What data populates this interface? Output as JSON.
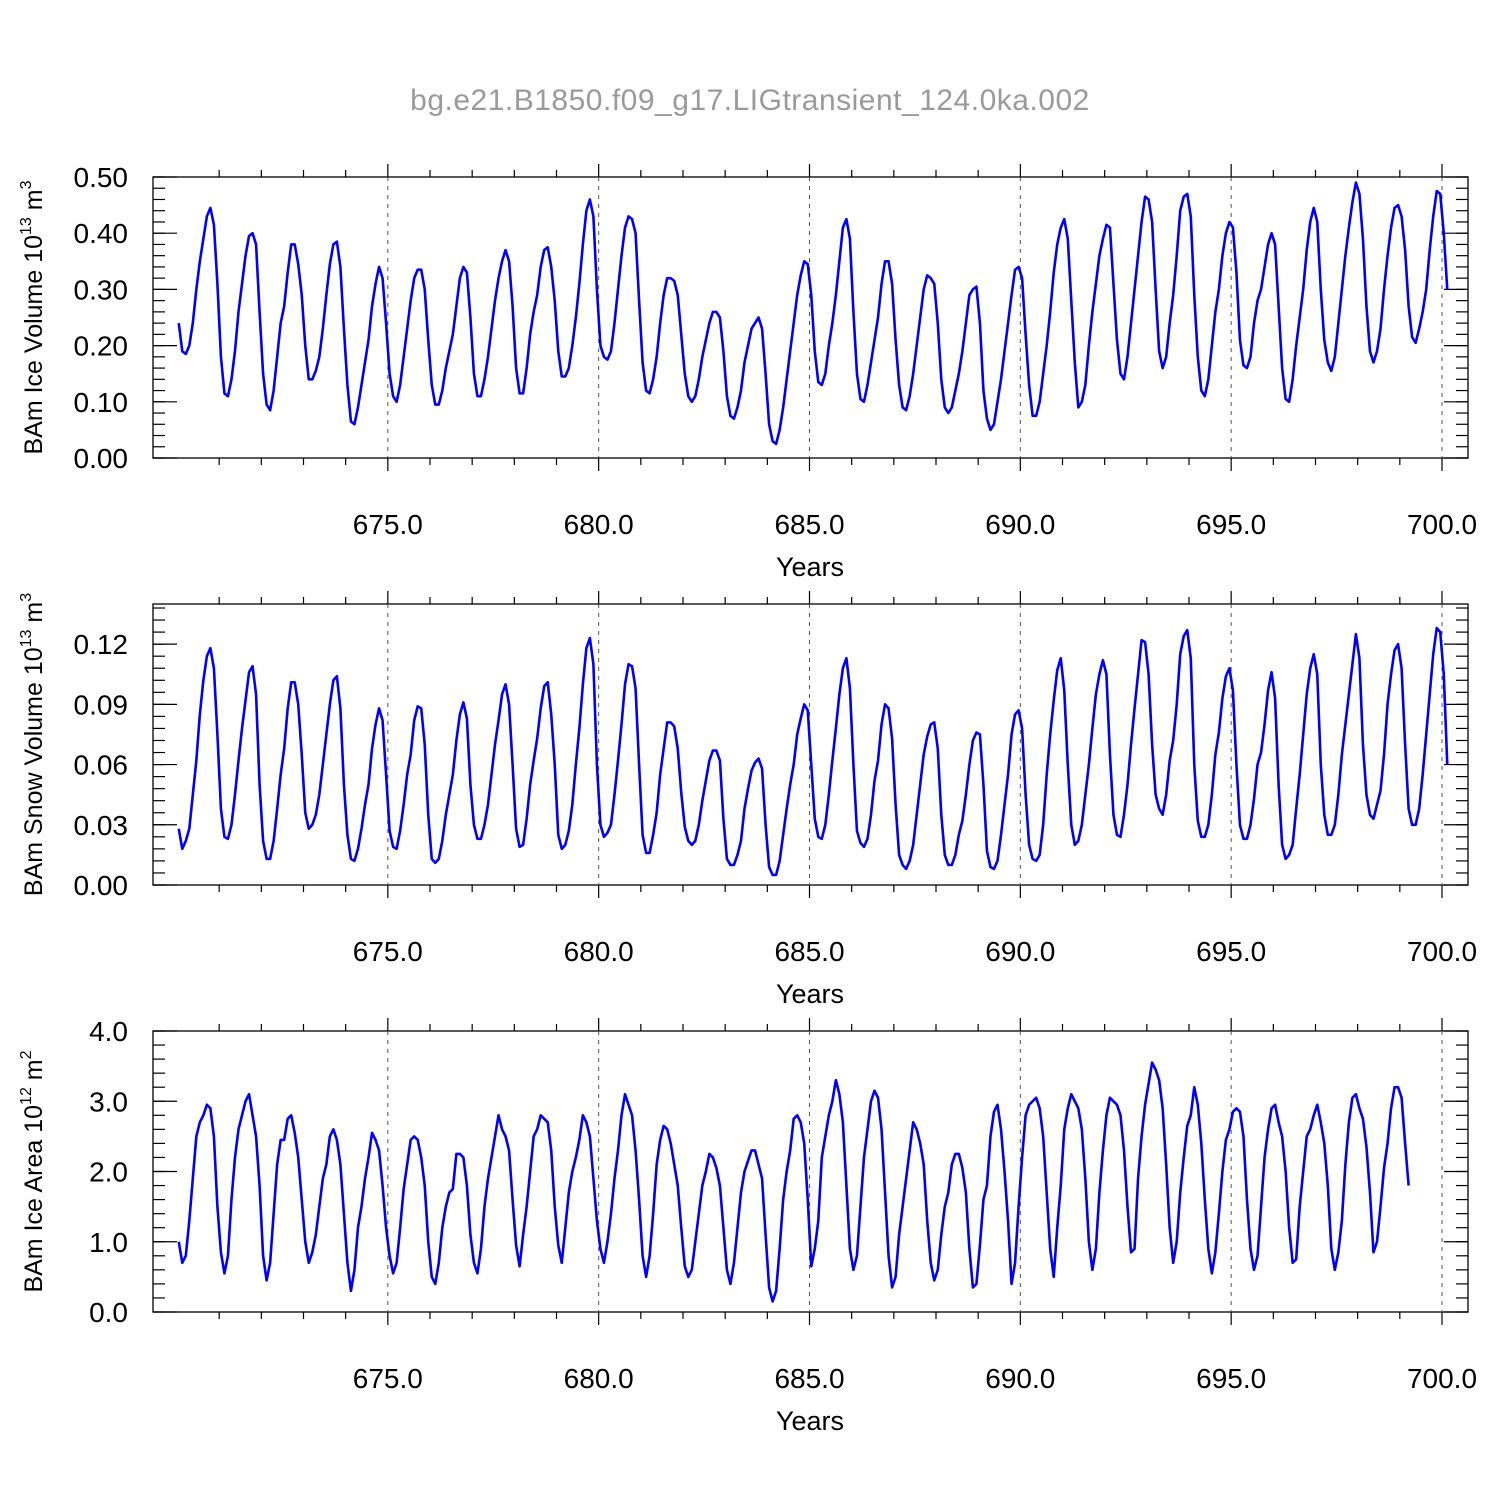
{
  "title": "bg.e21.B1850.f09_g17.LIGtransient_124.0ka.002",
  "colors": {
    "series": "#0000ff",
    "title": "#9a9a9a",
    "grid": "#555555"
  },
  "chart_data": [
    {
      "type": "line",
      "xlabel": "Years",
      "ylabel": {
        "main": "BAm Ice Volume 10",
        "exp": "13",
        "unit": " m",
        "unit_exp": "3"
      },
      "xlim": [
        670.0,
        700.0
      ],
      "ylim": [
        0.0,
        0.5
      ],
      "xticks": [
        "675.0",
        "680.0",
        "685.0",
        "690.0",
        "695.0",
        "700.0"
      ],
      "yticks": [
        "0.00",
        "0.10",
        "0.20",
        "0.30",
        "0.40",
        "0.50"
      ],
      "grid": "vertical dashed at major x ticks",
      "x_start": 670.0417,
      "x_step": 0.0833333,
      "values": [
        0.24,
        0.19,
        0.185,
        0.2,
        0.24,
        0.3,
        0.35,
        0.39,
        0.43,
        0.445,
        0.415,
        0.31,
        0.18,
        0.115,
        0.11,
        0.14,
        0.19,
        0.26,
        0.31,
        0.36,
        0.395,
        0.4,
        0.38,
        0.26,
        0.15,
        0.095,
        0.085,
        0.12,
        0.18,
        0.24,
        0.27,
        0.33,
        0.38,
        0.38,
        0.345,
        0.29,
        0.2,
        0.14,
        0.14,
        0.155,
        0.18,
        0.23,
        0.29,
        0.345,
        0.38,
        0.385,
        0.34,
        0.23,
        0.13,
        0.065,
        0.06,
        0.09,
        0.13,
        0.17,
        0.21,
        0.27,
        0.31,
        0.34,
        0.32,
        0.24,
        0.15,
        0.11,
        0.1,
        0.13,
        0.18,
        0.23,
        0.28,
        0.32,
        0.335,
        0.335,
        0.3,
        0.21,
        0.13,
        0.095,
        0.095,
        0.12,
        0.16,
        0.19,
        0.22,
        0.27,
        0.32,
        0.34,
        0.33,
        0.25,
        0.15,
        0.11,
        0.11,
        0.14,
        0.18,
        0.23,
        0.28,
        0.32,
        0.35,
        0.37,
        0.35,
        0.27,
        0.16,
        0.115,
        0.115,
        0.16,
        0.22,
        0.26,
        0.29,
        0.34,
        0.37,
        0.375,
        0.34,
        0.28,
        0.19,
        0.145,
        0.145,
        0.16,
        0.2,
        0.25,
        0.31,
        0.38,
        0.44,
        0.46,
        0.43,
        0.3,
        0.2,
        0.18,
        0.175,
        0.19,
        0.24,
        0.3,
        0.36,
        0.41,
        0.43,
        0.425,
        0.4,
        0.28,
        0.17,
        0.12,
        0.115,
        0.14,
        0.18,
        0.24,
        0.29,
        0.32,
        0.32,
        0.315,
        0.29,
        0.22,
        0.15,
        0.11,
        0.1,
        0.11,
        0.14,
        0.18,
        0.21,
        0.24,
        0.26,
        0.26,
        0.25,
        0.19,
        0.11,
        0.075,
        0.07,
        0.09,
        0.12,
        0.17,
        0.2,
        0.23,
        0.24,
        0.25,
        0.23,
        0.15,
        0.06,
        0.03,
        0.025,
        0.05,
        0.09,
        0.14,
        0.19,
        0.24,
        0.29,
        0.325,
        0.35,
        0.345,
        0.29,
        0.19,
        0.135,
        0.13,
        0.15,
        0.2,
        0.24,
        0.29,
        0.35,
        0.41,
        0.425,
        0.39,
        0.26,
        0.15,
        0.105,
        0.1,
        0.13,
        0.17,
        0.21,
        0.25,
        0.31,
        0.35,
        0.35,
        0.31,
        0.21,
        0.13,
        0.09,
        0.085,
        0.11,
        0.15,
        0.2,
        0.25,
        0.3,
        0.325,
        0.32,
        0.31,
        0.24,
        0.14,
        0.09,
        0.08,
        0.09,
        0.12,
        0.15,
        0.19,
        0.24,
        0.29,
        0.3,
        0.305,
        0.24,
        0.12,
        0.07,
        0.05,
        0.06,
        0.1,
        0.14,
        0.19,
        0.24,
        0.29,
        0.335,
        0.34,
        0.32,
        0.22,
        0.13,
        0.075,
        0.075,
        0.1,
        0.15,
        0.2,
        0.26,
        0.33,
        0.38,
        0.41,
        0.425,
        0.39,
        0.28,
        0.17,
        0.09,
        0.1,
        0.13,
        0.2,
        0.26,
        0.31,
        0.36,
        0.39,
        0.415,
        0.41,
        0.31,
        0.21,
        0.15,
        0.14,
        0.18,
        0.24,
        0.3,
        0.36,
        0.42,
        0.465,
        0.46,
        0.42,
        0.3,
        0.19,
        0.16,
        0.18,
        0.24,
        0.29,
        0.36,
        0.44,
        0.465,
        0.47,
        0.43,
        0.29,
        0.18,
        0.12,
        0.11,
        0.14,
        0.2,
        0.26,
        0.3,
        0.36,
        0.4,
        0.42,
        0.41,
        0.33,
        0.21,
        0.165,
        0.16,
        0.18,
        0.24,
        0.28,
        0.3,
        0.34,
        0.38,
        0.4,
        0.38,
        0.27,
        0.16,
        0.105,
        0.1,
        0.14,
        0.2,
        0.25,
        0.3,
        0.37,
        0.42,
        0.445,
        0.42,
        0.3,
        0.21,
        0.17,
        0.155,
        0.18,
        0.24,
        0.3,
        0.36,
        0.41,
        0.455,
        0.49,
        0.47,
        0.39,
        0.27,
        0.19,
        0.17,
        0.19,
        0.23,
        0.3,
        0.36,
        0.41,
        0.445,
        0.45,
        0.43,
        0.37,
        0.27,
        0.215,
        0.205,
        0.23,
        0.26,
        0.3,
        0.37,
        0.43,
        0.475,
        0.47,
        0.4,
        0.3
      ]
    },
    {
      "type": "line",
      "xlabel": "Years",
      "ylabel": {
        "main": "BAm Snow Volume 10",
        "exp": "13",
        "unit": " m",
        "unit_exp": "3"
      },
      "xlim": [
        670.0,
        700.0
      ],
      "ylim": [
        0.0,
        0.14
      ],
      "xticks": [
        "675.0",
        "680.0",
        "685.0",
        "690.0",
        "695.0",
        "700.0"
      ],
      "yticks": [
        "0.00",
        "0.03",
        "0.06",
        "0.09",
        "0.12"
      ],
      "grid": "vertical dashed at major x ticks",
      "x_start": 670.0417,
      "x_step": 0.0833333,
      "values": [
        0.028,
        0.018,
        0.022,
        0.028,
        0.045,
        0.062,
        0.085,
        0.102,
        0.114,
        0.118,
        0.108,
        0.075,
        0.038,
        0.024,
        0.023,
        0.03,
        0.045,
        0.062,
        0.078,
        0.092,
        0.106,
        0.109,
        0.095,
        0.05,
        0.022,
        0.013,
        0.013,
        0.022,
        0.038,
        0.055,
        0.068,
        0.088,
        0.101,
        0.101,
        0.09,
        0.065,
        0.036,
        0.028,
        0.03,
        0.035,
        0.045,
        0.06,
        0.075,
        0.09,
        0.102,
        0.104,
        0.088,
        0.05,
        0.025,
        0.013,
        0.012,
        0.018,
        0.028,
        0.04,
        0.05,
        0.068,
        0.08,
        0.088,
        0.082,
        0.055,
        0.027,
        0.019,
        0.018,
        0.027,
        0.04,
        0.055,
        0.065,
        0.082,
        0.089,
        0.088,
        0.07,
        0.035,
        0.013,
        0.011,
        0.013,
        0.022,
        0.035,
        0.045,
        0.055,
        0.072,
        0.085,
        0.091,
        0.083,
        0.05,
        0.03,
        0.023,
        0.023,
        0.03,
        0.04,
        0.055,
        0.07,
        0.082,
        0.095,
        0.1,
        0.09,
        0.06,
        0.028,
        0.019,
        0.02,
        0.033,
        0.05,
        0.062,
        0.073,
        0.088,
        0.099,
        0.101,
        0.085,
        0.06,
        0.025,
        0.018,
        0.02,
        0.027,
        0.04,
        0.06,
        0.078,
        0.1,
        0.118,
        0.123,
        0.11,
        0.06,
        0.03,
        0.024,
        0.026,
        0.03,
        0.045,
        0.062,
        0.08,
        0.1,
        0.11,
        0.109,
        0.098,
        0.06,
        0.025,
        0.016,
        0.016,
        0.025,
        0.036,
        0.055,
        0.068,
        0.081,
        0.081,
        0.079,
        0.068,
        0.046,
        0.029,
        0.022,
        0.02,
        0.022,
        0.03,
        0.042,
        0.052,
        0.062,
        0.067,
        0.067,
        0.062,
        0.033,
        0.013,
        0.01,
        0.01,
        0.015,
        0.022,
        0.038,
        0.048,
        0.057,
        0.061,
        0.063,
        0.058,
        0.03,
        0.009,
        0.005,
        0.005,
        0.012,
        0.025,
        0.038,
        0.05,
        0.06,
        0.075,
        0.083,
        0.09,
        0.087,
        0.06,
        0.033,
        0.024,
        0.023,
        0.03,
        0.045,
        0.062,
        0.078,
        0.095,
        0.108,
        0.113,
        0.098,
        0.06,
        0.027,
        0.021,
        0.019,
        0.023,
        0.035,
        0.052,
        0.062,
        0.08,
        0.09,
        0.088,
        0.073,
        0.04,
        0.015,
        0.01,
        0.008,
        0.012,
        0.02,
        0.035,
        0.05,
        0.065,
        0.074,
        0.08,
        0.081,
        0.068,
        0.035,
        0.015,
        0.01,
        0.01,
        0.015,
        0.025,
        0.032,
        0.045,
        0.06,
        0.072,
        0.076,
        0.075,
        0.05,
        0.017,
        0.009,
        0.008,
        0.012,
        0.025,
        0.04,
        0.055,
        0.075,
        0.085,
        0.087,
        0.078,
        0.045,
        0.02,
        0.013,
        0.012,
        0.015,
        0.03,
        0.055,
        0.075,
        0.092,
        0.107,
        0.113,
        0.097,
        0.06,
        0.03,
        0.02,
        0.022,
        0.03,
        0.045,
        0.06,
        0.078,
        0.095,
        0.105,
        0.112,
        0.105,
        0.065,
        0.035,
        0.025,
        0.024,
        0.035,
        0.05,
        0.07,
        0.088,
        0.105,
        0.122,
        0.121,
        0.105,
        0.07,
        0.045,
        0.038,
        0.035,
        0.045,
        0.062,
        0.072,
        0.09,
        0.115,
        0.124,
        0.127,
        0.113,
        0.06,
        0.032,
        0.024,
        0.024,
        0.03,
        0.045,
        0.065,
        0.076,
        0.093,
        0.104,
        0.108,
        0.097,
        0.06,
        0.03,
        0.023,
        0.023,
        0.03,
        0.043,
        0.06,
        0.066,
        0.08,
        0.097,
        0.106,
        0.093,
        0.05,
        0.02,
        0.013,
        0.015,
        0.02,
        0.038,
        0.055,
        0.075,
        0.095,
        0.108,
        0.115,
        0.105,
        0.06,
        0.035,
        0.025,
        0.025,
        0.03,
        0.045,
        0.065,
        0.08,
        0.095,
        0.11,
        0.125,
        0.113,
        0.07,
        0.045,
        0.035,
        0.033,
        0.04,
        0.047,
        0.065,
        0.09,
        0.105,
        0.117,
        0.12,
        0.108,
        0.07,
        0.038,
        0.03,
        0.03,
        0.038,
        0.055,
        0.075,
        0.095,
        0.115,
        0.128,
        0.126,
        0.105,
        0.06
      ]
    },
    {
      "type": "line",
      "xlabel": "Years",
      "ylabel": {
        "main": "BAm Ice Area 10",
        "exp": "12",
        "unit": " m",
        "unit_exp": "2"
      },
      "xlim": [
        670.0,
        700.0
      ],
      "ylim": [
        0.0,
        4.0
      ],
      "xticks": [
        "675.0",
        "680.0",
        "685.0",
        "690.0",
        "695.0",
        "700.0"
      ],
      "yticks": [
        "0.0",
        "1.0",
        "2.0",
        "3.0",
        "4.0"
      ],
      "grid": "vertical dashed at major x ticks",
      "x_start": 670.0417,
      "x_step": 0.0833333,
      "values": [
        1.0,
        0.7,
        0.8,
        1.3,
        1.9,
        2.5,
        2.7,
        2.8,
        2.95,
        2.9,
        2.5,
        1.5,
        0.85,
        0.55,
        0.8,
        1.6,
        2.2,
        2.6,
        2.8,
        3.0,
        3.1,
        2.8,
        2.5,
        1.8,
        0.8,
        0.45,
        0.7,
        1.4,
        2.1,
        2.45,
        2.45,
        2.75,
        2.8,
        2.55,
        2.2,
        1.6,
        1.0,
        0.7,
        0.85,
        1.1,
        1.5,
        1.9,
        2.1,
        2.5,
        2.6,
        2.45,
        2.1,
        1.4,
        0.7,
        0.3,
        0.6,
        1.2,
        1.5,
        1.9,
        2.2,
        2.55,
        2.45,
        2.3,
        1.8,
        1.2,
        0.8,
        0.55,
        0.7,
        1.2,
        1.75,
        2.1,
        2.45,
        2.5,
        2.45,
        2.2,
        1.8,
        1.0,
        0.5,
        0.4,
        0.7,
        1.2,
        1.5,
        1.7,
        1.75,
        2.25,
        2.25,
        2.2,
        1.8,
        1.1,
        0.7,
        0.55,
        0.9,
        1.5,
        1.9,
        2.2,
        2.5,
        2.8,
        2.6,
        2.5,
        2.3,
        1.6,
        0.95,
        0.65,
        1.1,
        1.5,
        2.0,
        2.5,
        2.6,
        2.8,
        2.75,
        2.7,
        2.3,
        1.5,
        0.95,
        0.7,
        1.2,
        1.7,
        2.0,
        2.2,
        2.45,
        2.8,
        2.7,
        2.5,
        1.9,
        1.3,
        0.9,
        0.7,
        1.0,
        1.4,
        1.9,
        2.3,
        2.8,
        3.1,
        2.95,
        2.8,
        2.3,
        1.6,
        0.8,
        0.5,
        0.8,
        1.4,
        2.1,
        2.45,
        2.65,
        2.6,
        2.4,
        2.1,
        1.8,
        1.2,
        0.65,
        0.5,
        0.6,
        1.0,
        1.4,
        1.8,
        2.0,
        2.25,
        2.2,
        2.05,
        1.8,
        1.2,
        0.6,
        0.4,
        0.7,
        1.2,
        1.7,
        2.0,
        2.15,
        2.3,
        2.3,
        2.1,
        1.9,
        1.1,
        0.35,
        0.15,
        0.3,
        0.9,
        1.6,
        2.0,
        2.3,
        2.75,
        2.8,
        2.7,
        2.4,
        1.6,
        0.65,
        0.9,
        1.3,
        2.2,
        2.5,
        2.8,
        3.0,
        3.3,
        3.1,
        2.7,
        1.8,
        0.9,
        0.6,
        0.8,
        1.5,
        2.2,
        2.6,
        3.0,
        3.15,
        3.05,
        2.6,
        1.7,
        0.8,
        0.35,
        0.5,
        1.1,
        1.5,
        1.9,
        2.3,
        2.7,
        2.6,
        2.4,
        2.1,
        1.3,
        0.7,
        0.45,
        0.6,
        1.1,
        1.5,
        1.7,
        2.1,
        2.25,
        2.25,
        2.05,
        1.7,
        0.9,
        0.35,
        0.4,
        0.95,
        1.6,
        1.8,
        2.5,
        2.85,
        2.95,
        2.6,
        2.0,
        1.3,
        0.4,
        0.7,
        1.5,
        2.2,
        2.8,
        2.95,
        3.0,
        3.05,
        2.9,
        2.5,
        1.7,
        0.9,
        0.5,
        1.2,
        1.8,
        2.6,
        2.9,
        3.1,
        3.0,
        2.9,
        2.6,
        1.9,
        1.0,
        0.6,
        0.9,
        1.7,
        2.3,
        2.8,
        3.05,
        3.0,
        2.95,
        2.8,
        2.3,
        1.5,
        0.85,
        0.9,
        1.9,
        2.5,
        2.95,
        3.25,
        3.55,
        3.45,
        3.3,
        2.9,
        2.1,
        1.2,
        0.7,
        1.0,
        1.7,
        2.2,
        2.65,
        2.8,
        3.2,
        2.95,
        2.4,
        1.6,
        0.9,
        0.55,
        0.85,
        1.4,
        2.0,
        2.45,
        2.6,
        2.85,
        2.9,
        2.85,
        2.5,
        1.6,
        0.9,
        0.6,
        0.8,
        1.5,
        2.2,
        2.6,
        2.9,
        2.95,
        2.7,
        2.5,
        2.0,
        1.2,
        0.7,
        0.75,
        1.5,
        2.0,
        2.5,
        2.6,
        2.8,
        2.95,
        2.7,
        2.4,
        1.8,
        0.9,
        0.6,
        0.85,
        1.3,
        2.1,
        2.7,
        3.05,
        3.1,
        2.9,
        2.75,
        2.35,
        1.7,
        0.85,
        1.0,
        1.5,
        2.05,
        2.4,
        2.9,
        3.2,
        3.2,
        3.05,
        2.4,
        1.8
      ]
    }
  ]
}
